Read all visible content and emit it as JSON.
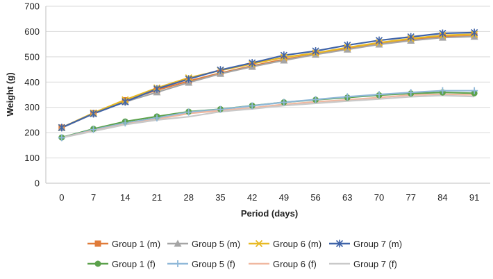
{
  "chart_data": {
    "type": "line",
    "title": "",
    "xlabel": "Period (days)",
    "ylabel": "Weight (g)",
    "x": [
      0,
      7,
      14,
      21,
      28,
      35,
      42,
      49,
      56,
      63,
      70,
      77,
      84,
      91
    ],
    "x_tick_labels": [
      "0",
      "7",
      "14",
      "21",
      "28",
      "35",
      "42",
      "49",
      "56",
      "63",
      "70",
      "77",
      "84",
      "91"
    ],
    "ylim": [
      0,
      700
    ],
    "y_ticks": [
      0,
      100,
      200,
      300,
      400,
      500,
      600,
      700
    ],
    "y_tick_labels": [
      "0",
      "100",
      "200",
      "300",
      "400",
      "500",
      "600",
      "700"
    ],
    "grid": "horizontal",
    "legend_position": "bottom",
    "series": [
      {
        "name": "Group 1 (m)",
        "color": "#E07B39",
        "marker": "square",
        "values": [
          220,
          277,
          328,
          368,
          404,
          436,
          464,
          490,
          510,
          532,
          551,
          567,
          580,
          582
        ]
      },
      {
        "name": "Group 5 (m)",
        "color": "#A5A5A5",
        "marker": "triangle",
        "values": [
          219,
          275,
          322,
          360,
          398,
          433,
          461,
          486,
          509,
          529,
          549,
          564,
          576,
          580
        ]
      },
      {
        "name": "Group 6 (m)",
        "color": "#E8B923",
        "marker": "x",
        "values": [
          220,
          278,
          330,
          377,
          417,
          446,
          472,
          498,
          515,
          537,
          556,
          572,
          585,
          589
        ]
      },
      {
        "name": "Group 7 (m)",
        "color": "#3F63A8",
        "marker": "asterisk",
        "values": [
          220,
          275,
          322,
          373,
          412,
          448,
          476,
          506,
          523,
          546,
          565,
          579,
          593,
          596
        ]
      },
      {
        "name": "Group 1 (f)",
        "color": "#5BA14B",
        "marker": "circle",
        "values": [
          181,
          215,
          244,
          264,
          283,
          293,
          307,
          320,
          330,
          339,
          348,
          355,
          359,
          356
        ]
      },
      {
        "name": "Group 5 (f)",
        "color": "#8FB8D8",
        "marker": "plus",
        "values": [
          180,
          212,
          238,
          258,
          281,
          292,
          306,
          320,
          331,
          342,
          351,
          359,
          366,
          366
        ]
      },
      {
        "name": "Group 6 (f)",
        "color": "#F0B8A0",
        "marker": "none",
        "values": [
          180,
          208,
          234,
          253,
          276,
          287,
          298,
          312,
          322,
          330,
          339,
          349,
          352,
          350
        ]
      },
      {
        "name": "Group 7 (f)",
        "color": "#C9C9C9",
        "marker": "none",
        "values": [
          180,
          206,
          232,
          250,
          263,
          283,
          294,
          307,
          316,
          325,
          333,
          342,
          347,
          343
        ]
      }
    ]
  }
}
